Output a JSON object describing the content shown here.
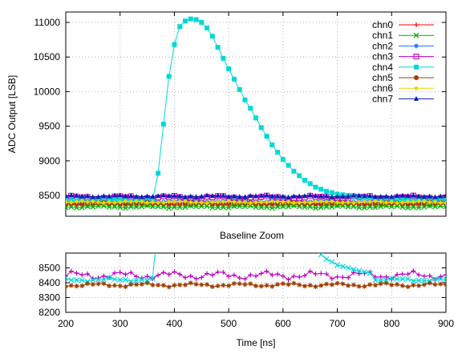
{
  "chart_data": [
    {
      "type": "line",
      "ylabel": "ADC Output [LSB]",
      "xlim": [
        200,
        900
      ],
      "ylim": [
        8200,
        11150
      ],
      "yticks": [
        8500,
        9000,
        9500,
        10000,
        10500,
        11000
      ],
      "grid": true,
      "legend_position": "top-right",
      "series": [
        {
          "name": "chn0",
          "color": "#ff0000",
          "marker": "plus",
          "baseline": 8370,
          "amp": 15
        },
        {
          "name": "chn1",
          "color": "#00b000",
          "marker": "x",
          "baseline": 8335,
          "amp": 18
        },
        {
          "name": "chn2",
          "color": "#1f6fff",
          "marker": "asterisk",
          "baseline": 8420,
          "amp": 15
        },
        {
          "name": "chn3",
          "color": "#c000c0",
          "marker": "open-square",
          "baseline": 8470,
          "amp": 30
        },
        {
          "name": "chn4",
          "color": "#00d8d8",
          "marker": "filled-square",
          "baseline": 8430,
          "amp": 15,
          "pulse": {
            "x": [
              360,
              370,
              380,
              390,
              400,
              410,
              420,
              430,
              440,
              450,
              460,
              470,
              480,
              490,
              500,
              510,
              520,
              530,
              540,
              560,
              580,
              600,
              620,
              640,
              660,
              680,
              700,
              720,
              740,
              760
            ],
            "y": [
              8430,
              8820,
              9530,
              10220,
              10680,
              10940,
              11020,
              11050,
              11040,
              11000,
              10920,
              10800,
              10640,
              10480,
              10330,
              10180,
              10030,
              9880,
              9760,
              9480,
              9230,
              9020,
              8850,
              8720,
              8620,
              8560,
              8520,
              8500,
              8480,
              8465
            ]
          }
        },
        {
          "name": "chn5",
          "color": "#a03c00",
          "marker": "filled-circle",
          "baseline": 8390,
          "amp": 15
        },
        {
          "name": "chn6",
          "color": "#e8d800",
          "marker": "filled-diamond",
          "baseline": 8405,
          "amp": 15
        },
        {
          "name": "chn7",
          "color": "#0020b0",
          "marker": "filled-triangle",
          "baseline": 8490,
          "amp": 15
        }
      ]
    },
    {
      "type": "line",
      "title": "Baseline Zoom",
      "xlabel": "Time [ns]",
      "xlim": [
        200,
        900
      ],
      "ylim": [
        8200,
        8600
      ],
      "xticks": [
        200,
        300,
        400,
        500,
        600,
        700,
        800,
        900
      ],
      "yticks": [
        8200,
        8300,
        8400,
        8500
      ],
      "grid": true,
      "series": [
        {
          "name": "chn3",
          "color": "#c000c0",
          "marker": "plus",
          "baseline": 8450,
          "amp": 30
        },
        {
          "name": "chn4",
          "color": "#00d8d8",
          "marker": "x",
          "baseline": 8420,
          "amp": 12
        },
        {
          "name": "chn5",
          "color": "#a03c00",
          "marker": "asterisk",
          "baseline": 8385,
          "amp": 14
        }
      ]
    }
  ]
}
